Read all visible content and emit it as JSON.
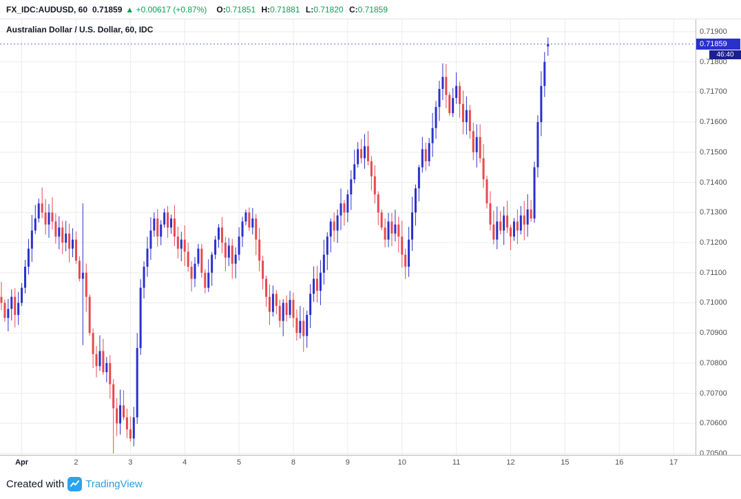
{
  "header": {
    "symbol": "FX_IDC:AUDUSD, 60",
    "last": "0.71859",
    "change": "▲ +0.00617 (+0.87%)",
    "o_label": "O:",
    "o": "0.71851",
    "h_label": "H:",
    "h": "0.71881",
    "l_label": "L:",
    "l": "0.71820",
    "c_label": "C:",
    "c": "0.71859"
  },
  "legend": "Australian Dollar / U.S. Dollar, 60, IDC",
  "price_axis": {
    "ticks": [
      "0.71900",
      "0.71800",
      "0.71700",
      "0.71600",
      "0.71500",
      "0.71400",
      "0.71300",
      "0.71200",
      "0.71100",
      "0.71000",
      "0.70900",
      "0.70800",
      "0.70700",
      "0.70600",
      "0.70500"
    ],
    "badge_price": "0.71859",
    "badge_countdown": "46:40"
  },
  "time_axis": {
    "ticks": [
      {
        "label": "Apr",
        "bar": 6,
        "month": true
      },
      {
        "label": "2",
        "bar": 22
      },
      {
        "label": "3",
        "bar": 38
      },
      {
        "label": "4",
        "bar": 54
      },
      {
        "label": "5",
        "bar": 70
      },
      {
        "label": "8",
        "bar": 86
      },
      {
        "label": "9",
        "bar": 102
      },
      {
        "label": "10",
        "bar": 118
      },
      {
        "label": "11",
        "bar": 134
      },
      {
        "label": "12",
        "bar": 150
      },
      {
        "label": "15",
        "bar": 166
      },
      {
        "label": "16",
        "bar": 182
      },
      {
        "label": "17",
        "bar": 198
      }
    ]
  },
  "footer": {
    "created_with": "Created with",
    "brand": "TradingView"
  },
  "colors": {
    "up": "#2a30cc",
    "down": "#e8484d",
    "green": "#0b9c53",
    "grid": "#ebebeb",
    "axis_text": "#4f4f4f",
    "badge_bg": "#2a30cc",
    "countdown_bg": "#1b1f8f",
    "brand_blue": "#2d9cdb",
    "logo_bg": "#29a3ee"
  },
  "chart_data": {
    "type": "candlestick",
    "title": "Australian Dollar / U.S. Dollar, 60, IDC",
    "symbol": "FX_IDC:AUDUSD",
    "interval": "60",
    "y_min": 0.705,
    "y_max": 0.719,
    "y_step": 0.001,
    "x_dates": [
      "Apr 1",
      "Apr 2",
      "Apr 3",
      "Apr 4",
      "Apr 5",
      "Apr 8",
      "Apr 9",
      "Apr 10",
      "Apr 11",
      "Apr 12"
    ],
    "first_open": 0.7102,
    "closes": [
      0.71,
      0.7095,
      0.7098,
      0.7102,
      0.7096,
      0.71,
      0.7105,
      0.7112,
      0.7118,
      0.7124,
      0.7128,
      0.7133,
      0.713,
      0.7126,
      0.713,
      0.7127,
      0.7122,
      0.7125,
      0.712,
      0.7123,
      0.7118,
      0.7121,
      0.7114,
      0.7108,
      0.711,
      0.7102,
      0.709,
      0.7083,
      0.7079,
      0.7084,
      0.7077,
      0.708,
      0.7073,
      0.7065,
      0.706,
      0.7066,
      0.7062,
      0.7058,
      0.7055,
      0.7062,
      0.7085,
      0.7105,
      0.7112,
      0.7118,
      0.7124,
      0.7128,
      0.7122,
      0.7126,
      0.713,
      0.7125,
      0.7128,
      0.7122,
      0.7118,
      0.7121,
      0.7117,
      0.7112,
      0.7108,
      0.7113,
      0.7118,
      0.711,
      0.7105,
      0.711,
      0.7116,
      0.7121,
      0.7125,
      0.712,
      0.7115,
      0.7119,
      0.7113,
      0.7116,
      0.7122,
      0.7127,
      0.713,
      0.7125,
      0.7128,
      0.7121,
      0.7114,
      0.7108,
      0.7102,
      0.7097,
      0.7103,
      0.7099,
      0.7094,
      0.71,
      0.7096,
      0.7101,
      0.7095,
      0.709,
      0.7094,
      0.7089,
      0.7096,
      0.7103,
      0.7108,
      0.7104,
      0.711,
      0.7116,
      0.7122,
      0.7127,
      0.7124,
      0.7129,
      0.7133,
      0.713,
      0.7136,
      0.7141,
      0.7146,
      0.7151,
      0.7148,
      0.7152,
      0.7147,
      0.7142,
      0.7136,
      0.713,
      0.7125,
      0.7121,
      0.7127,
      0.7123,
      0.7126,
      0.7122,
      0.7116,
      0.7112,
      0.7121,
      0.713,
      0.7138,
      0.7145,
      0.7151,
      0.7147,
      0.7153,
      0.7158,
      0.7165,
      0.7171,
      0.7175,
      0.7169,
      0.7163,
      0.7168,
      0.7172,
      0.7166,
      0.716,
      0.7164,
      0.7157,
      0.715,
      0.7155,
      0.7148,
      0.7141,
      0.7133,
      0.7126,
      0.7121,
      0.7127,
      0.7124,
      0.7129,
      0.7125,
      0.7122,
      0.7127,
      0.7124,
      0.7129,
      0.7126,
      0.7131,
      0.7128,
      0.7145,
      0.716,
      0.7172,
      0.718
    ],
    "current_bar": {
      "o": 0.71851,
      "h": 0.71881,
      "l": 0.7182,
      "c": 0.71859
    },
    "wick_overrides": {
      "24": {
        "h": 0.7133,
        "l": 0.7086
      },
      "33": {
        "l": 0.705
      }
    }
  }
}
